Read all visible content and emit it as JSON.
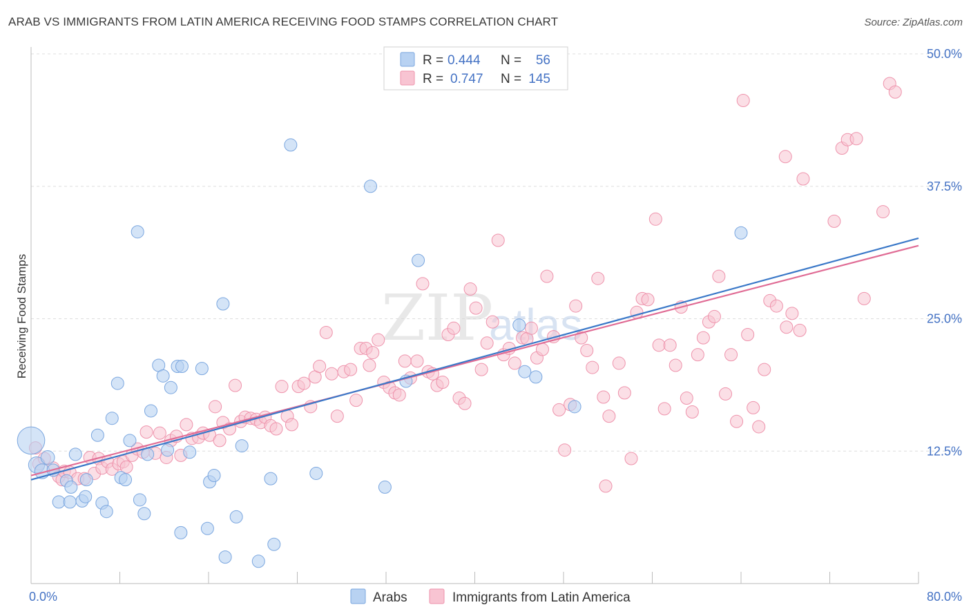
{
  "title": "ARAB VS IMMIGRANTS FROM LATIN AMERICA RECEIVING FOOD STAMPS CORRELATION CHART",
  "source": "Source: ZipAtlas.com",
  "watermark": {
    "zip": "ZIP",
    "atlas": "atlas"
  },
  "colors": {
    "arabs_fill": "#b8d2f2",
    "arabs_stroke": "#7aa6df",
    "arabs_line": "#3a78c8",
    "latin_fill": "#f8c4d2",
    "latin_stroke": "#ee92ab",
    "latin_line": "#e06c95",
    "tick_label": "#4472c4",
    "grid": "#dddddd"
  },
  "legend": {
    "row1": {
      "r_label": "R =",
      "r_value": "0.444",
      "n_label": "N =",
      "n_value": "56"
    },
    "row2": {
      "r_label": "R =",
      "r_value": "0.747",
      "n_label": "N =",
      "n_value": "145"
    }
  },
  "bottom_legend": {
    "arabs": "Arabs",
    "latin": "Immigrants from Latin America"
  },
  "chart_data": {
    "type": "scatter",
    "title": "ARAB VS IMMIGRANTS FROM LATIN AMERICA RECEIVING FOOD STAMPS CORRELATION CHART",
    "xlabel": "",
    "ylabel": "Receiving Food Stamps",
    "xlim": [
      0,
      80
    ],
    "ylim": [
      0,
      50
    ],
    "x_tick_labels": [
      "0.0%",
      "80.0%"
    ],
    "y_ticks": [
      12.5,
      25.0,
      37.5,
      50.0
    ],
    "y_tick_labels": [
      "12.5%",
      "25.0%",
      "37.5%",
      "50.0%"
    ],
    "grid": "horizontal dashed",
    "legend_position": "top-center",
    "series": [
      {
        "name": "Arabs",
        "r": 0.444,
        "n": 56,
        "trend": {
          "x": [
            0,
            80
          ],
          "y": [
            9.8,
            32.6
          ]
        },
        "points": [
          [
            0,
            13.5,
            2.2
          ],
          [
            0.5,
            11.2,
            1.3
          ],
          [
            1,
            10.6,
            1.2
          ],
          [
            1.5,
            11.9,
            1.1
          ],
          [
            2,
            10.7,
            1
          ],
          [
            2.5,
            7.7,
            1
          ],
          [
            3.2,
            9.7,
            1
          ],
          [
            3.5,
            7.7,
            1
          ],
          [
            3.6,
            9.1,
            1
          ],
          [
            4,
            12.2,
            1
          ],
          [
            4.6,
            7.8,
            1
          ],
          [
            4.9,
            8.2,
            1
          ],
          [
            5,
            9.8,
            1
          ],
          [
            6,
            14.0,
            1
          ],
          [
            6.4,
            7.6,
            1
          ],
          [
            6.8,
            6.8,
            1
          ],
          [
            7.3,
            15.6,
            1
          ],
          [
            7.8,
            18.9,
            1
          ],
          [
            8.1,
            10.0,
            1
          ],
          [
            8.5,
            9.8,
            1
          ],
          [
            8.9,
            13.5,
            1
          ],
          [
            9.6,
            33.2,
            1
          ],
          [
            9.8,
            7.9,
            1
          ],
          [
            10.2,
            6.6,
            1
          ],
          [
            10.5,
            12.2,
            1
          ],
          [
            10.8,
            16.3,
            1
          ],
          [
            11.5,
            20.6,
            1
          ],
          [
            11.9,
            19.6,
            1
          ],
          [
            12.3,
            12.6,
            1
          ],
          [
            12.6,
            18.5,
            1
          ],
          [
            13.2,
            20.5,
            1
          ],
          [
            13.6,
            20.5,
            1
          ],
          [
            13.5,
            4.8,
            1
          ],
          [
            14.3,
            12.4,
            1
          ],
          [
            15.4,
            20.3,
            1
          ],
          [
            15.9,
            5.2,
            1
          ],
          [
            16.1,
            9.6,
            1
          ],
          [
            16.5,
            10.2,
            1
          ],
          [
            17.3,
            26.4,
            1
          ],
          [
            17.5,
            2.5,
            1
          ],
          [
            18.5,
            6.3,
            1
          ],
          [
            19,
            13.0,
            1
          ],
          [
            20.5,
            2.1,
            1
          ],
          [
            21.6,
            9.9,
            1
          ],
          [
            21.9,
            3.7,
            1
          ],
          [
            23.4,
            41.4,
            1
          ],
          [
            25.7,
            10.4,
            1
          ],
          [
            30.6,
            37.5,
            1
          ],
          [
            31.9,
            9.1,
            1
          ],
          [
            33.8,
            19.1,
            1
          ],
          [
            34.9,
            30.5,
            1
          ],
          [
            44,
            24.4,
            1
          ],
          [
            44.5,
            20.0,
            1
          ],
          [
            45.5,
            19.5,
            1
          ],
          [
            49,
            16.7,
            1
          ],
          [
            64,
            33.1,
            1
          ]
        ]
      },
      {
        "name": "Immigrants from Latin America",
        "r": 0.747,
        "n": 145,
        "trend": {
          "x": [
            0,
            80
          ],
          "y": [
            10.2,
            31.9
          ]
        },
        "points": [
          [
            0.4,
            12.8
          ],
          [
            0.7,
            11.3
          ],
          [
            1.2,
            11.8
          ],
          [
            2,
            10.9
          ],
          [
            2.5,
            10.1
          ],
          [
            2.8,
            9.8
          ],
          [
            3,
            10.6
          ],
          [
            3.5,
            10.5
          ],
          [
            4.2,
            9.9
          ],
          [
            4.8,
            9.9
          ],
          [
            5.3,
            11.9
          ],
          [
            5.7,
            10.4
          ],
          [
            6.1,
            11.8
          ],
          [
            6.4,
            10.9
          ],
          [
            6.9,
            11.5
          ],
          [
            7.3,
            10.8
          ],
          [
            7.9,
            11.3
          ],
          [
            8.3,
            11.5
          ],
          [
            8.6,
            11.0
          ],
          [
            9.1,
            12.1
          ],
          [
            9.6,
            12.7
          ],
          [
            10.1,
            12.4
          ],
          [
            10.4,
            14.3
          ],
          [
            11.2,
            12.3
          ],
          [
            11.6,
            14.2
          ],
          [
            12.2,
            11.9
          ],
          [
            12.6,
            13.5
          ],
          [
            13.1,
            13.9
          ],
          [
            13.5,
            12.1
          ],
          [
            14,
            15.0
          ],
          [
            14.5,
            13.7
          ],
          [
            15.1,
            13.8
          ],
          [
            15.5,
            14.2
          ],
          [
            16.1,
            14.0
          ],
          [
            16.6,
            16.7
          ],
          [
            17,
            13.5
          ],
          [
            17.3,
            15.2
          ],
          [
            17.9,
            14.6
          ],
          [
            18.4,
            18.7
          ],
          [
            18.9,
            15.3
          ],
          [
            19.3,
            15.7
          ],
          [
            19.8,
            15.6
          ],
          [
            20.3,
            15.5
          ],
          [
            20.7,
            15.2
          ],
          [
            21.1,
            15.7
          ],
          [
            21.6,
            14.9
          ],
          [
            22.1,
            14.6
          ],
          [
            22.6,
            18.6
          ],
          [
            23.1,
            15.8
          ],
          [
            23.5,
            15.0
          ],
          [
            24.1,
            18.6
          ],
          [
            24.6,
            18.9
          ],
          [
            25.2,
            16.7
          ],
          [
            25.6,
            19.5
          ],
          [
            26,
            20.5
          ],
          [
            26.6,
            23.7
          ],
          [
            27.1,
            19.8
          ],
          [
            27.6,
            15.8
          ],
          [
            28.2,
            20.0
          ],
          [
            28.8,
            20.2
          ],
          [
            29.3,
            17.3
          ],
          [
            29.7,
            22.2
          ],
          [
            30.2,
            22.2
          ],
          [
            30.5,
            20.6
          ],
          [
            30.8,
            21.8
          ],
          [
            31.3,
            23.0
          ],
          [
            31.8,
            19.0
          ],
          [
            32.3,
            18.5
          ],
          [
            32.8,
            18.0
          ],
          [
            33.2,
            17.8
          ],
          [
            33.7,
            21.0
          ],
          [
            34.2,
            19.4
          ],
          [
            34.8,
            21.0
          ],
          [
            35.3,
            28.3
          ],
          [
            35.8,
            20.0
          ],
          [
            36.2,
            19.8
          ],
          [
            36.6,
            18.7
          ],
          [
            37.1,
            19.0
          ],
          [
            37.6,
            23.5
          ],
          [
            38.1,
            24.1
          ],
          [
            38.6,
            17.5
          ],
          [
            39.1,
            17.0
          ],
          [
            39.6,
            27.8
          ],
          [
            40.1,
            26.0
          ],
          [
            40.6,
            20.2
          ],
          [
            41.1,
            22.7
          ],
          [
            41.6,
            24.7
          ],
          [
            42.1,
            32.4
          ],
          [
            42.6,
            21.6
          ],
          [
            43.1,
            22.2
          ],
          [
            43.6,
            20.8
          ],
          [
            44.3,
            23.2
          ],
          [
            44.7,
            23.1
          ],
          [
            45.1,
            24.1
          ],
          [
            45.6,
            21.3
          ],
          [
            46.1,
            22.1
          ],
          [
            46.5,
            29.0
          ],
          [
            47.1,
            23.3
          ],
          [
            47.6,
            16.4
          ],
          [
            48.1,
            12.6
          ],
          [
            48.6,
            16.9
          ],
          [
            49.1,
            26.2
          ],
          [
            49.6,
            23.2
          ],
          [
            50.1,
            22.0
          ],
          [
            50.6,
            20.4
          ],
          [
            51.1,
            28.8
          ],
          [
            51.6,
            17.6
          ],
          [
            52.1,
            15.8
          ],
          [
            53,
            20.8
          ],
          [
            53.5,
            18.0
          ],
          [
            54.1,
            11.8
          ],
          [
            54.6,
            25.6
          ],
          [
            55.1,
            26.9
          ],
          [
            55.6,
            26.8
          ],
          [
            56.3,
            34.4
          ],
          [
            56.6,
            22.5
          ],
          [
            57.1,
            16.5
          ],
          [
            57.6,
            22.5
          ],
          [
            58.1,
            20.6
          ],
          [
            58.6,
            26.1
          ],
          [
            59.1,
            17.5
          ],
          [
            59.6,
            16.2
          ],
          [
            60.1,
            21.6
          ],
          [
            60.6,
            23.2
          ],
          [
            61.1,
            24.7
          ],
          [
            61.6,
            25.2
          ],
          [
            62,
            29.0
          ],
          [
            62.6,
            17.9
          ],
          [
            63.1,
            21.6
          ],
          [
            63.6,
            15.3
          ],
          [
            64.2,
            45.6
          ],
          [
            64.6,
            23.5
          ],
          [
            65.1,
            16.6
          ],
          [
            65.6,
            14.8
          ],
          [
            66.1,
            20.2
          ],
          [
            66.6,
            26.7
          ],
          [
            67.2,
            26.2
          ],
          [
            68.1,
            24.2
          ],
          [
            68.6,
            25.5
          ],
          [
            68,
            40.3
          ],
          [
            69.6,
            38.2
          ],
          [
            69.3,
            23.9
          ],
          [
            72.4,
            34.2
          ],
          [
            73.1,
            41.1
          ],
          [
            73.6,
            41.9
          ],
          [
            75.1,
            26.9
          ],
          [
            76.8,
            35.1
          ],
          [
            77.4,
            47.2
          ],
          [
            77.9,
            46.4
          ],
          [
            74.4,
            42.0
          ],
          [
            51.8,
            9.2
          ]
        ]
      }
    ]
  }
}
